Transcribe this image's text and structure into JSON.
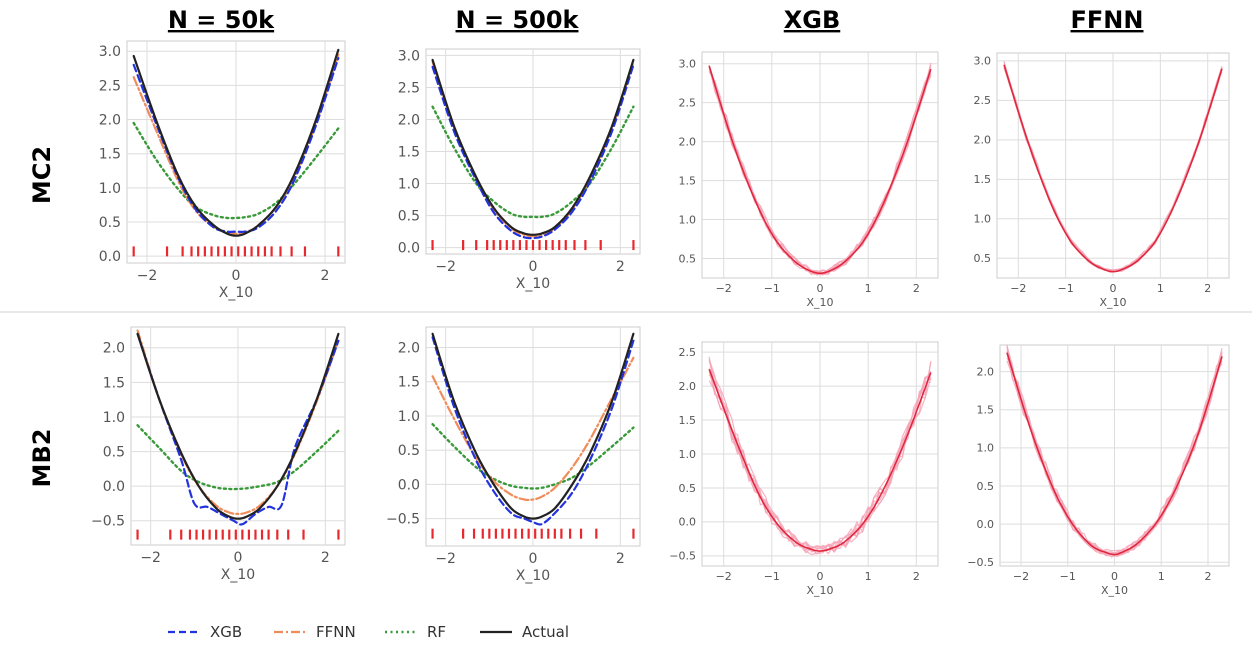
{
  "column_headers": [
    "N = 50k",
    "N = 500k",
    "XGB",
    "FFNN"
  ],
  "row_headers": [
    "MC2",
    "MB2"
  ],
  "legend": {
    "placement": "bottom-left",
    "entries": [
      {
        "label": "XGB",
        "color": "#2233dd",
        "style": "dashed"
      },
      {
        "label": "FFNN",
        "color": "#f08c5a",
        "style": "dashdot"
      },
      {
        "label": "RF",
        "color": "#3a9a3a",
        "style": "dotted"
      },
      {
        "label": "Actual",
        "color": "#222222",
        "style": "solid"
      }
    ]
  },
  "colors": {
    "xgb": "#2233dd",
    "ffnn": "#f08c5a",
    "rf": "#3a9a3a",
    "actual": "#222222",
    "rug": "#e8282c",
    "ensemble_main": "#e0283c",
    "ensemble_light": "#f6a5b8",
    "grid": "#dddddd",
    "frame": "#cccccc",
    "tick_text": "#555555"
  },
  "chart_data": [
    {
      "type": "line",
      "row": "MC2",
      "column": "N = 50k",
      "xlabel": "X_10",
      "xlim": [
        -2.45,
        2.45
      ],
      "ylim": [
        -0.1,
        3.15
      ],
      "xticks": [
        "-2",
        "0",
        "2"
      ],
      "xtick_values": [
        -2,
        0,
        2
      ],
      "yticks": [
        "0.0",
        "0.5",
        "1.0",
        "1.5",
        "2.0",
        "2.5",
        "3.0"
      ],
      "ytick_values": [
        0,
        0.5,
        1.0,
        1.5,
        2.0,
        2.5,
        3.0
      ],
      "grid": true,
      "rug": {
        "y": 0.07,
        "x": [
          -2.3,
          -1.55,
          -1.2,
          -1.0,
          -0.85,
          -0.7,
          -0.55,
          -0.4,
          -0.25,
          -0.1,
          0.05,
          0.2,
          0.35,
          0.5,
          0.65,
          0.8,
          1.0,
          1.25,
          1.55,
          2.3
        ]
      },
      "series": [
        {
          "name": "Actual",
          "x": [
            -2.3,
            -1.8,
            -1.3,
            -0.9,
            -0.5,
            -0.2,
            0,
            0.2,
            0.5,
            0.9,
            1.3,
            1.8,
            2.3
          ],
          "y": [
            2.93,
            2.0,
            1.18,
            0.72,
            0.45,
            0.33,
            0.3,
            0.33,
            0.45,
            0.72,
            1.18,
            2.0,
            3.02
          ]
        },
        {
          "name": "XGB",
          "x": [
            -2.3,
            -1.8,
            -1.3,
            -0.9,
            -0.5,
            -0.2,
            0,
            0.2,
            0.5,
            0.9,
            1.3,
            1.8,
            2.3
          ],
          "y": [
            2.8,
            1.95,
            1.15,
            0.68,
            0.42,
            0.36,
            0.36,
            0.36,
            0.42,
            0.66,
            1.1,
            1.92,
            2.9
          ]
        },
        {
          "name": "FFNN",
          "x": [
            -2.3,
            -1.8,
            -1.3,
            -0.9,
            -0.5,
            -0.2,
            0,
            0.2,
            0.5,
            0.9,
            1.3,
            1.8,
            2.3
          ],
          "y": [
            2.62,
            1.85,
            1.1,
            0.66,
            0.43,
            0.34,
            0.33,
            0.34,
            0.45,
            0.72,
            1.15,
            1.95,
            2.95
          ]
        },
        {
          "name": "RF",
          "x": [
            -2.3,
            -1.8,
            -1.3,
            -0.9,
            -0.5,
            -0.2,
            0,
            0.2,
            0.5,
            0.9,
            1.3,
            1.8,
            2.3
          ],
          "y": [
            1.95,
            1.42,
            0.98,
            0.72,
            0.6,
            0.56,
            0.56,
            0.57,
            0.62,
            0.78,
            1.05,
            1.45,
            1.87
          ]
        }
      ]
    },
    {
      "type": "line",
      "row": "MC2",
      "column": "N = 500k",
      "xlabel": "X_10",
      "xlim": [
        -2.45,
        2.45
      ],
      "ylim": [
        -0.1,
        3.1
      ],
      "xticks": [
        "-2",
        "0",
        "2"
      ],
      "xtick_values": [
        -2,
        0,
        2
      ],
      "yticks": [
        "0.0",
        "0.5",
        "1.0",
        "1.5",
        "2.0",
        "2.5",
        "3.0"
      ],
      "ytick_values": [
        0,
        0.5,
        1.0,
        1.5,
        2.0,
        2.5,
        3.0
      ],
      "grid": true,
      "rug": {
        "y": 0.04,
        "x": [
          -2.3,
          -1.6,
          -1.3,
          -1.05,
          -0.9,
          -0.75,
          -0.6,
          -0.45,
          -0.3,
          -0.15,
          0.0,
          0.15,
          0.3,
          0.45,
          0.6,
          0.75,
          0.95,
          1.2,
          1.55,
          2.3
        ]
      },
      "series": [
        {
          "name": "Actual",
          "x": [
            -2.3,
            -1.8,
            -1.3,
            -0.9,
            -0.5,
            -0.2,
            0,
            0.2,
            0.5,
            0.9,
            1.3,
            1.8,
            2.3
          ],
          "y": [
            2.93,
            1.88,
            1.1,
            0.62,
            0.32,
            0.22,
            0.2,
            0.22,
            0.32,
            0.62,
            1.1,
            1.88,
            2.93
          ]
        },
        {
          "name": "XGB",
          "x": [
            -2.3,
            -1.8,
            -1.3,
            -0.9,
            -0.5,
            -0.2,
            0,
            0.2,
            0.5,
            0.9,
            1.3,
            1.8,
            2.3
          ],
          "y": [
            2.82,
            1.8,
            1.05,
            0.55,
            0.26,
            0.16,
            0.15,
            0.17,
            0.28,
            0.56,
            1.02,
            1.8,
            2.85
          ]
        },
        {
          "name": "FFNN",
          "x": [
            -2.3,
            -1.8,
            -1.3,
            -0.9,
            -0.5,
            -0.2,
            0,
            0.2,
            0.5,
            0.9,
            1.3,
            1.8,
            2.3
          ],
          "y": [
            2.9,
            1.86,
            1.08,
            0.6,
            0.3,
            0.2,
            0.18,
            0.2,
            0.3,
            0.6,
            1.07,
            1.85,
            2.9
          ]
        },
        {
          "name": "RF",
          "x": [
            -2.3,
            -1.8,
            -1.3,
            -0.9,
            -0.5,
            -0.2,
            0,
            0.2,
            0.5,
            0.9,
            1.3,
            1.8,
            2.3
          ],
          "y": [
            2.2,
            1.55,
            1.0,
            0.72,
            0.53,
            0.48,
            0.48,
            0.48,
            0.53,
            0.72,
            1.0,
            1.55,
            2.2
          ]
        }
      ]
    },
    {
      "type": "line",
      "row": "MC2",
      "column": "XGB",
      "xlabel": "X_10",
      "xlim": [
        -2.45,
        2.45
      ],
      "ylim": [
        0.25,
        3.15
      ],
      "xticks": [
        "-2",
        "-1",
        "0",
        "1",
        "2"
      ],
      "xtick_values": [
        -2,
        -1,
        0,
        1,
        2
      ],
      "yticks": [
        "0.5",
        "1.0",
        "1.5",
        "2.0",
        "2.5",
        "3.0"
      ],
      "ytick_values": [
        0.5,
        1.0,
        1.5,
        2.0,
        2.5,
        3.0
      ],
      "grid": true,
      "mean_curve": {
        "x": [
          -2.3,
          -1.8,
          -1.3,
          -0.9,
          -0.5,
          -0.2,
          0,
          0.2,
          0.5,
          0.9,
          1.3,
          1.8,
          2.3
        ],
        "y": [
          2.97,
          1.97,
          1.18,
          0.72,
          0.45,
          0.34,
          0.31,
          0.34,
          0.45,
          0.72,
          1.18,
          1.97,
          2.93
        ]
      },
      "ensemble_count": 8,
      "ensemble_noise": 0.06
    },
    {
      "type": "line",
      "row": "MC2",
      "column": "FFNN",
      "xlabel": "X_10",
      "xlim": [
        -2.45,
        2.45
      ],
      "ylim": [
        0.25,
        3.1
      ],
      "xticks": [
        "-2",
        "-1",
        "0",
        "1",
        "2"
      ],
      "xtick_values": [
        -2,
        -1,
        0,
        1,
        2
      ],
      "yticks": [
        "0.5",
        "1.0",
        "1.5",
        "2.0",
        "2.5",
        "3.0"
      ],
      "ytick_values": [
        0.5,
        1.0,
        1.5,
        2.0,
        2.5,
        3.0
      ],
      "grid": true,
      "mean_curve": {
        "x": [
          -2.3,
          -1.8,
          -1.3,
          -0.9,
          -0.5,
          -0.2,
          0,
          0.2,
          0.5,
          0.9,
          1.3,
          1.8,
          2.3
        ],
        "y": [
          2.95,
          1.98,
          1.18,
          0.72,
          0.46,
          0.36,
          0.33,
          0.36,
          0.46,
          0.72,
          1.18,
          1.95,
          2.9
        ]
      },
      "ensemble_count": 8,
      "ensemble_noise": 0.03
    },
    {
      "type": "line",
      "row": "MB2",
      "column": "N = 50k",
      "xlabel": "X_10",
      "xlim": [
        -2.45,
        2.45
      ],
      "ylim": [
        -0.85,
        2.3
      ],
      "xticks": [
        "-2",
        "0",
        "2"
      ],
      "xtick_values": [
        -2,
        0,
        2
      ],
      "yticks": [
        "-0.5",
        "0.0",
        "0.5",
        "1.0",
        "1.5",
        "2.0"
      ],
      "ytick_values": [
        -0.5,
        0,
        0.5,
        1.0,
        1.5,
        2.0
      ],
      "grid": true,
      "rug": {
        "y": -0.7,
        "x": [
          -2.3,
          -1.55,
          -1.3,
          -1.1,
          -0.95,
          -0.8,
          -0.65,
          -0.5,
          -0.35,
          -0.2,
          -0.05,
          0.1,
          0.25,
          0.4,
          0.55,
          0.7,
          0.9,
          1.15,
          1.5,
          2.3
        ]
      },
      "series": [
        {
          "name": "Actual",
          "x": [
            -2.3,
            -1.8,
            -1.3,
            -0.9,
            -0.5,
            -0.2,
            0,
            0.2,
            0.5,
            0.9,
            1.3,
            1.8,
            2.3
          ],
          "y": [
            2.2,
            1.25,
            0.48,
            0.0,
            -0.32,
            -0.44,
            -0.47,
            -0.44,
            -0.32,
            0.0,
            0.48,
            1.25,
            2.2
          ]
        },
        {
          "name": "XGB",
          "x": [
            -2.3,
            -1.8,
            -1.3,
            -1.0,
            -0.7,
            -0.4,
            -0.1,
            0.1,
            0.4,
            0.7,
            1.0,
            1.3,
            1.8,
            2.3
          ],
          "y": [
            2.2,
            1.25,
            0.38,
            -0.25,
            -0.3,
            -0.4,
            -0.5,
            -0.55,
            -0.4,
            -0.3,
            -0.27,
            0.55,
            1.25,
            2.1
          ]
        },
        {
          "name": "FFNN",
          "x": [
            -2.3,
            -1.8,
            -1.3,
            -0.9,
            -0.5,
            -0.2,
            0,
            0.2,
            0.5,
            0.9,
            1.3,
            1.8,
            2.3
          ],
          "y": [
            2.25,
            1.25,
            0.46,
            0.0,
            -0.28,
            -0.38,
            -0.4,
            -0.38,
            -0.28,
            0.0,
            0.46,
            1.22,
            2.1
          ]
        },
        {
          "name": "RF",
          "x": [
            -2.3,
            -1.8,
            -1.3,
            -0.9,
            -0.5,
            -0.2,
            0,
            0.2,
            0.5,
            0.9,
            1.3,
            1.8,
            2.3
          ],
          "y": [
            0.88,
            0.55,
            0.22,
            0.06,
            -0.02,
            -0.04,
            -0.04,
            -0.03,
            0.0,
            0.06,
            0.22,
            0.5,
            0.8
          ]
        }
      ]
    },
    {
      "type": "line",
      "row": "MB2",
      "column": "N = 500k",
      "xlabel": "X_10",
      "xlim": [
        -2.45,
        2.45
      ],
      "ylim": [
        -0.9,
        2.3
      ],
      "xticks": [
        "-2",
        "0",
        "2"
      ],
      "xtick_values": [
        -2,
        0,
        2
      ],
      "yticks": [
        "-0.5",
        "0.0",
        "0.5",
        "1.0",
        "1.5",
        "2.0"
      ],
      "ytick_values": [
        -0.5,
        0,
        0.5,
        1.0,
        1.5,
        2.0
      ],
      "grid": true,
      "rug": {
        "y": -0.72,
        "x": [
          -2.3,
          -1.6,
          -1.35,
          -1.15,
          -1.0,
          -0.85,
          -0.7,
          -0.55,
          -0.4,
          -0.25,
          -0.1,
          0.05,
          0.2,
          0.35,
          0.5,
          0.65,
          0.85,
          1.1,
          1.45,
          2.3
        ]
      },
      "series": [
        {
          "name": "Actual",
          "x": [
            -2.3,
            -1.8,
            -1.3,
            -0.9,
            -0.5,
            -0.2,
            0,
            0.2,
            0.5,
            0.9,
            1.3,
            1.8,
            2.3
          ],
          "y": [
            2.2,
            1.2,
            0.45,
            0.0,
            -0.35,
            -0.47,
            -0.5,
            -0.47,
            -0.35,
            0.0,
            0.45,
            1.2,
            2.2
          ]
        },
        {
          "name": "XGB",
          "x": [
            -2.3,
            -1.8,
            -1.3,
            -0.9,
            -0.5,
            -0.2,
            0,
            0.2,
            0.5,
            0.9,
            1.3,
            1.8,
            2.3
          ],
          "y": [
            2.15,
            1.12,
            0.35,
            -0.1,
            -0.42,
            -0.5,
            -0.55,
            -0.58,
            -0.42,
            -0.12,
            0.35,
            1.1,
            2.1
          ]
        },
        {
          "name": "FFNN",
          "x": [
            -2.3,
            -1.8,
            -1.3,
            -0.9,
            -0.5,
            -0.2,
            0,
            0.2,
            0.5,
            0.9,
            1.3,
            1.8,
            2.3
          ],
          "y": [
            1.58,
            0.95,
            0.38,
            0.05,
            -0.15,
            -0.22,
            -0.22,
            -0.18,
            -0.05,
            0.25,
            0.65,
            1.25,
            1.85
          ]
        },
        {
          "name": "RF",
          "x": [
            -2.3,
            -1.8,
            -1.3,
            -0.9,
            -0.5,
            -0.2,
            0,
            0.2,
            0.5,
            0.9,
            1.3,
            1.8,
            2.3
          ],
          "y": [
            0.88,
            0.55,
            0.25,
            0.08,
            -0.02,
            -0.05,
            -0.06,
            -0.05,
            0.0,
            0.1,
            0.28,
            0.55,
            0.83
          ]
        }
      ]
    },
    {
      "type": "line",
      "row": "MB2",
      "column": "XGB",
      "xlabel": "X_10",
      "xlim": [
        -2.45,
        2.45
      ],
      "ylim": [
        -0.65,
        2.65
      ],
      "xticks": [
        "-2",
        "-1",
        "0",
        "1",
        "2"
      ],
      "xtick_values": [
        -2,
        -1,
        0,
        1,
        2
      ],
      "yticks": [
        "-0.5",
        "0.0",
        "0.5",
        "1.0",
        "1.5",
        "2.0",
        "2.5"
      ],
      "ytick_values": [
        -0.5,
        0,
        0.5,
        1.0,
        1.5,
        2.0,
        2.5
      ],
      "grid": true,
      "mean_curve": {
        "x": [
          -2.3,
          -1.8,
          -1.3,
          -0.9,
          -0.5,
          -0.2,
          0,
          0.2,
          0.5,
          0.9,
          1.3,
          1.8,
          2.3
        ],
        "y": [
          2.25,
          1.3,
          0.45,
          -0.02,
          -0.3,
          -0.4,
          -0.43,
          -0.4,
          -0.3,
          -0.02,
          0.45,
          1.25,
          2.2
        ]
      },
      "ensemble_count": 8,
      "ensemble_noise": 0.12
    },
    {
      "type": "line",
      "row": "MB2",
      "column": "FFNN",
      "xlabel": "X_10",
      "xlim": [
        -2.45,
        2.45
      ],
      "ylim": [
        -0.55,
        2.35
      ],
      "xticks": [
        "-2",
        "-1",
        "0",
        "1",
        "2"
      ],
      "xtick_values": [
        -2,
        -1,
        0,
        1,
        2
      ],
      "yticks": [
        "-0.5",
        "0.0",
        "0.5",
        "1.0",
        "1.5",
        "2.0"
      ],
      "ytick_values": [
        -0.5,
        0,
        0.5,
        1.0,
        1.5,
        2.0
      ],
      "grid": true,
      "mean_curve": {
        "x": [
          -2.3,
          -1.8,
          -1.3,
          -0.9,
          -0.5,
          -0.2,
          0,
          0.2,
          0.5,
          0.9,
          1.3,
          1.8,
          2.3
        ],
        "y": [
          2.25,
          1.25,
          0.45,
          0.0,
          -0.28,
          -0.37,
          -0.4,
          -0.36,
          -0.25,
          0.02,
          0.45,
          1.2,
          2.2
        ]
      },
      "ensemble_count": 8,
      "ensemble_noise": 0.07
    }
  ]
}
